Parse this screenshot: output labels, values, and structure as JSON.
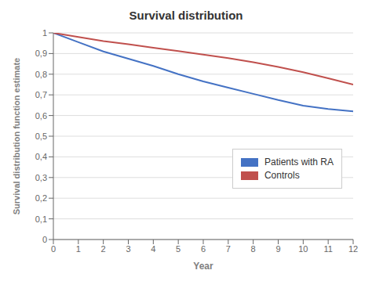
{
  "chart_data": {
    "type": "line",
    "title": "Survival distribution",
    "xlabel": "Year",
    "ylabel": "Survival distribution function estimate",
    "x": [
      0,
      1,
      2,
      3,
      4,
      5,
      6,
      7,
      8,
      9,
      10,
      11,
      12
    ],
    "series": [
      {
        "name": "Patients with RA",
        "color": "#4472C4",
        "values": [
          1.0,
          0.955,
          0.91,
          0.875,
          0.84,
          0.8,
          0.765,
          0.735,
          0.705,
          0.675,
          0.648,
          0.632,
          0.62
        ]
      },
      {
        "name": "Controls",
        "color": "#C0504D",
        "values": [
          1.0,
          0.98,
          0.96,
          0.945,
          0.928,
          0.912,
          0.895,
          0.878,
          0.858,
          0.835,
          0.81,
          0.78,
          0.75
        ]
      }
    ],
    "xlim": [
      0,
      12
    ],
    "xticks": [
      0,
      1,
      2,
      3,
      4,
      5,
      6,
      7,
      8,
      9,
      10,
      11,
      12
    ],
    "ylim": [
      0,
      1.0
    ],
    "yticks": [
      0,
      {
        "value": 0.1,
        "label": "0,1"
      },
      {
        "value": 0.2,
        "label": "0,2"
      },
      {
        "value": 0.3,
        "label": "0,3"
      },
      {
        "value": 0.4,
        "label": "0,4"
      },
      {
        "value": 0.5,
        "label": "0,5"
      },
      {
        "value": 0.6,
        "label": "0,6"
      },
      {
        "value": 0.7,
        "label": "0,7"
      },
      {
        "value": 0.8,
        "label": "0,8"
      },
      {
        "value": 0.9,
        "label": "0,9"
      },
      {
        "value": 1.0,
        "label": "1"
      }
    ],
    "grid": "y",
    "legend": "lower right"
  }
}
